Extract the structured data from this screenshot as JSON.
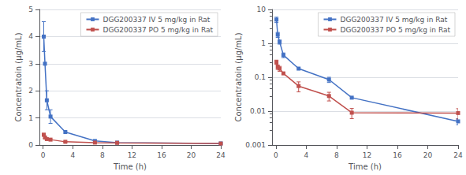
{
  "chart_data": [
    {
      "type": "line",
      "xlabel": "Time (h)",
      "ylabel": "Concentratoin (μg/mL)",
      "x": [
        0.083,
        0.25,
        0.5,
        1.0,
        3.0,
        7.0,
        10.0,
        24.0
      ],
      "series": [
        {
          "name": "DGG200337 IV 5 mg/kg in Rat",
          "color": "#4472C4",
          "marker": "square",
          "values": [
            4.0,
            3.0,
            1.65,
            1.05,
            0.48,
            0.15,
            0.09,
            0.06
          ],
          "yerr": [
            0.55,
            0.0,
            0.35,
            0.25,
            0.0,
            0.0,
            0.0,
            0.0
          ]
        },
        {
          "name": "DGG200337 PO 5 mg/kg in Rat",
          "color": "#C0504D",
          "marker": "square",
          "values": [
            0.38,
            0.28,
            0.22,
            0.2,
            0.12,
            0.09,
            0.08,
            0.055
          ],
          "yerr": [
            0.05,
            0.04,
            0.03,
            0.0,
            0.02,
            0.0,
            0.01,
            0.0
          ]
        }
      ],
      "xlim": [
        -0.5,
        24
      ],
      "ylim": [
        0,
        5
      ],
      "xticks": [
        0,
        4,
        8,
        12,
        16,
        20,
        24
      ],
      "yticks": [
        0,
        1,
        2,
        3,
        4,
        5
      ],
      "grid": "y",
      "legend": "upper right"
    },
    {
      "type": "line",
      "xlabel": "Time (h)",
      "ylabel": "Concentratoin (μg/mL)",
      "x": [
        0.083,
        0.25,
        0.5,
        1.0,
        3.0,
        7.0,
        10.0,
        24.0
      ],
      "series": [
        {
          "name": "DGG200337 IV 5 mg/kg in Rat",
          "color": "#4472C4",
          "marker": "square",
          "values": [
            5.0,
            1.8,
            1.1,
            0.45,
            0.18,
            0.085,
            0.025,
            0.005
          ],
          "yerr": [
            0.9,
            0.3,
            0.15,
            0.07,
            0.0,
            0.015,
            0.0,
            0.001
          ]
        },
        {
          "name": "DGG200337 PO 5 mg/kg in Rat",
          "color": "#C0504D",
          "marker": "square",
          "values": [
            0.28,
            0.2,
            0.18,
            0.13,
            0.055,
            0.028,
            0.009,
            0.0088
          ],
          "yerr": [
            0.04,
            0.03,
            0.03,
            0.0,
            0.018,
            0.008,
            0.003,
            0.003
          ]
        }
      ],
      "xlim": [
        -0.5,
        24
      ],
      "ylim": [
        0.001,
        10
      ],
      "xticks": [
        0,
        4,
        8,
        12,
        16,
        20,
        24
      ],
      "yticks": [
        0.001,
        0.01,
        0.1,
        1,
        10
      ],
      "log": "y",
      "grid": "y",
      "legend": "upper right"
    }
  ]
}
